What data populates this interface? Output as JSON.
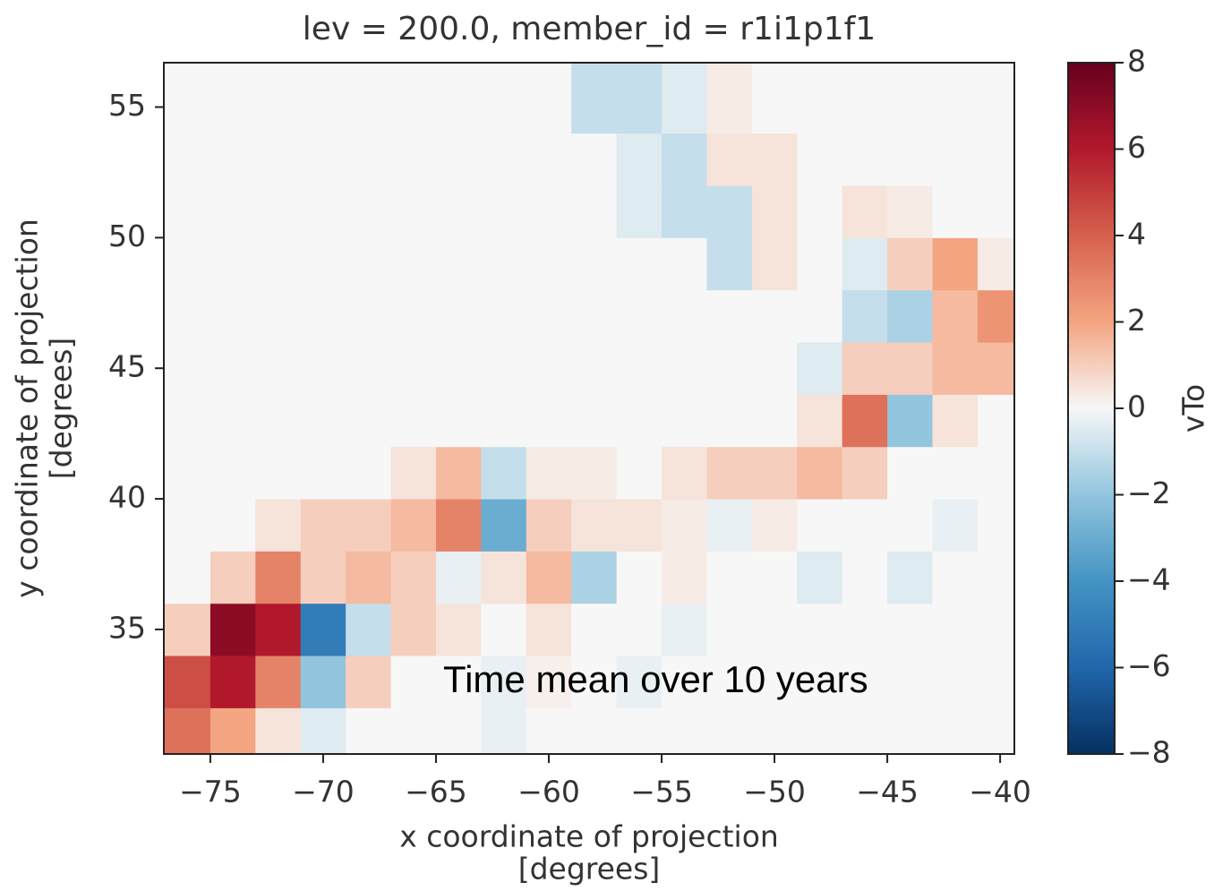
{
  "chart_data": {
    "type": "heatmap",
    "title": "lev = 200.0, member_id = r1i1p1f1",
    "xlabel": [
      "x coordinate of projection",
      "[degrees]"
    ],
    "ylabel": [
      "y coordinate of projection",
      "[degrees]"
    ],
    "colorbar_label": "vTo",
    "annotation": "Time mean over 10 years",
    "xlim": [
      -77.06,
      -39.37
    ],
    "ylim": [
      30.23,
      56.7
    ],
    "xticks": [
      {
        "value": -75,
        "label": "−75"
      },
      {
        "value": -70,
        "label": "−70"
      },
      {
        "value": -65,
        "label": "−65"
      },
      {
        "value": -60,
        "label": "−60"
      },
      {
        "value": -55,
        "label": "−55"
      },
      {
        "value": -50,
        "label": "−50"
      },
      {
        "value": -45,
        "label": "−45"
      },
      {
        "value": -40,
        "label": "−40"
      }
    ],
    "yticks": [
      35,
      40,
      45,
      50,
      55
    ],
    "clim": [
      -8,
      8
    ],
    "cticks": [
      {
        "value": -8,
        "label": "−8"
      },
      {
        "value": -6,
        "label": "−6"
      },
      {
        "value": -4,
        "label": "−4"
      },
      {
        "value": -2,
        "label": "−2"
      },
      0,
      2,
      4,
      6,
      8
    ],
    "colorscale": [
      "#053061",
      "#2166ac",
      "#4393c3",
      "#92c5de",
      "#f7f7f7",
      "#f4a582",
      "#d6604d",
      "#b2182b",
      "#67001f"
    ],
    "x": [
      -76,
      -74,
      -72,
      -70,
      -68,
      -66,
      -64,
      -62,
      -60,
      -58,
      -56,
      -54,
      -52,
      -50,
      -48,
      -46,
      -44,
      -42,
      -40
    ],
    "y": [
      31,
      33,
      35,
      37,
      39,
      41,
      43,
      45,
      47,
      49,
      51,
      53,
      55
    ],
    "values": [
      [
        3.5,
        2,
        0.5,
        -0.5,
        0,
        0,
        0,
        -0.3,
        0,
        0,
        0,
        0,
        0,
        0,
        0,
        0,
        0,
        0,
        0
      ],
      [
        4.5,
        6,
        3,
        -2,
        1,
        0,
        0,
        -0.3,
        0.2,
        0,
        -0.3,
        0,
        0,
        0,
        0,
        0,
        0,
        0,
        0
      ],
      [
        1,
        7,
        6,
        -5,
        -1,
        1,
        0.5,
        0,
        0.5,
        0,
        0,
        -0.3,
        0,
        0,
        0,
        0,
        0,
        0,
        0
      ],
      [
        0,
        1,
        3,
        1,
        1.5,
        1,
        -0.3,
        0.5,
        1.5,
        -1.5,
        0,
        0.3,
        0,
        0,
        -0.5,
        0,
        -0.5,
        0,
        0
      ],
      [
        0,
        0,
        0.5,
        1,
        1,
        1.5,
        3,
        -3,
        1,
        0.5,
        0.5,
        0.3,
        -0.3,
        0.3,
        0,
        0,
        0,
        -0.3,
        0
      ],
      [
        0,
        0,
        0,
        0,
        0,
        0.5,
        1.5,
        -1,
        0.3,
        0.3,
        0,
        0.5,
        1,
        1,
        1.5,
        1,
        0,
        0,
        0
      ],
      [
        0,
        0,
        0,
        0,
        0,
        0,
        0,
        0,
        0,
        0,
        0,
        0,
        0,
        0,
        0.5,
        3.5,
        -2,
        0.5,
        0
      ],
      [
        0,
        0,
        0,
        0,
        0,
        0,
        0,
        0,
        0,
        0,
        0,
        0,
        0,
        0,
        -0.5,
        1,
        1,
        1.5,
        1.5
      ],
      [
        0,
        0,
        0,
        0,
        0,
        0,
        0,
        0,
        0,
        0,
        0,
        0,
        0,
        0,
        0,
        -1,
        -1.5,
        1.5,
        2.5
      ],
      [
        0,
        0,
        0,
        0,
        0,
        0,
        0,
        0,
        0,
        0,
        0,
        0,
        -1,
        0.5,
        0,
        -0.5,
        1,
        2,
        0.3
      ],
      [
        0,
        0,
        0,
        0,
        0,
        0,
        0,
        0,
        0,
        0,
        -0.5,
        -1,
        -1,
        0.5,
        0,
        0.5,
        0.3,
        0,
        0
      ],
      [
        0,
        0,
        0,
        0,
        0,
        0,
        0,
        0,
        0,
        0,
        -0.5,
        -1,
        0.5,
        0.5,
        0,
        0,
        0,
        0,
        0
      ],
      [
        0,
        0,
        0,
        0,
        0,
        0,
        0,
        0,
        0,
        -1,
        -1,
        -0.5,
        0.3,
        0,
        0,
        0,
        0,
        0,
        0
      ]
    ]
  }
}
